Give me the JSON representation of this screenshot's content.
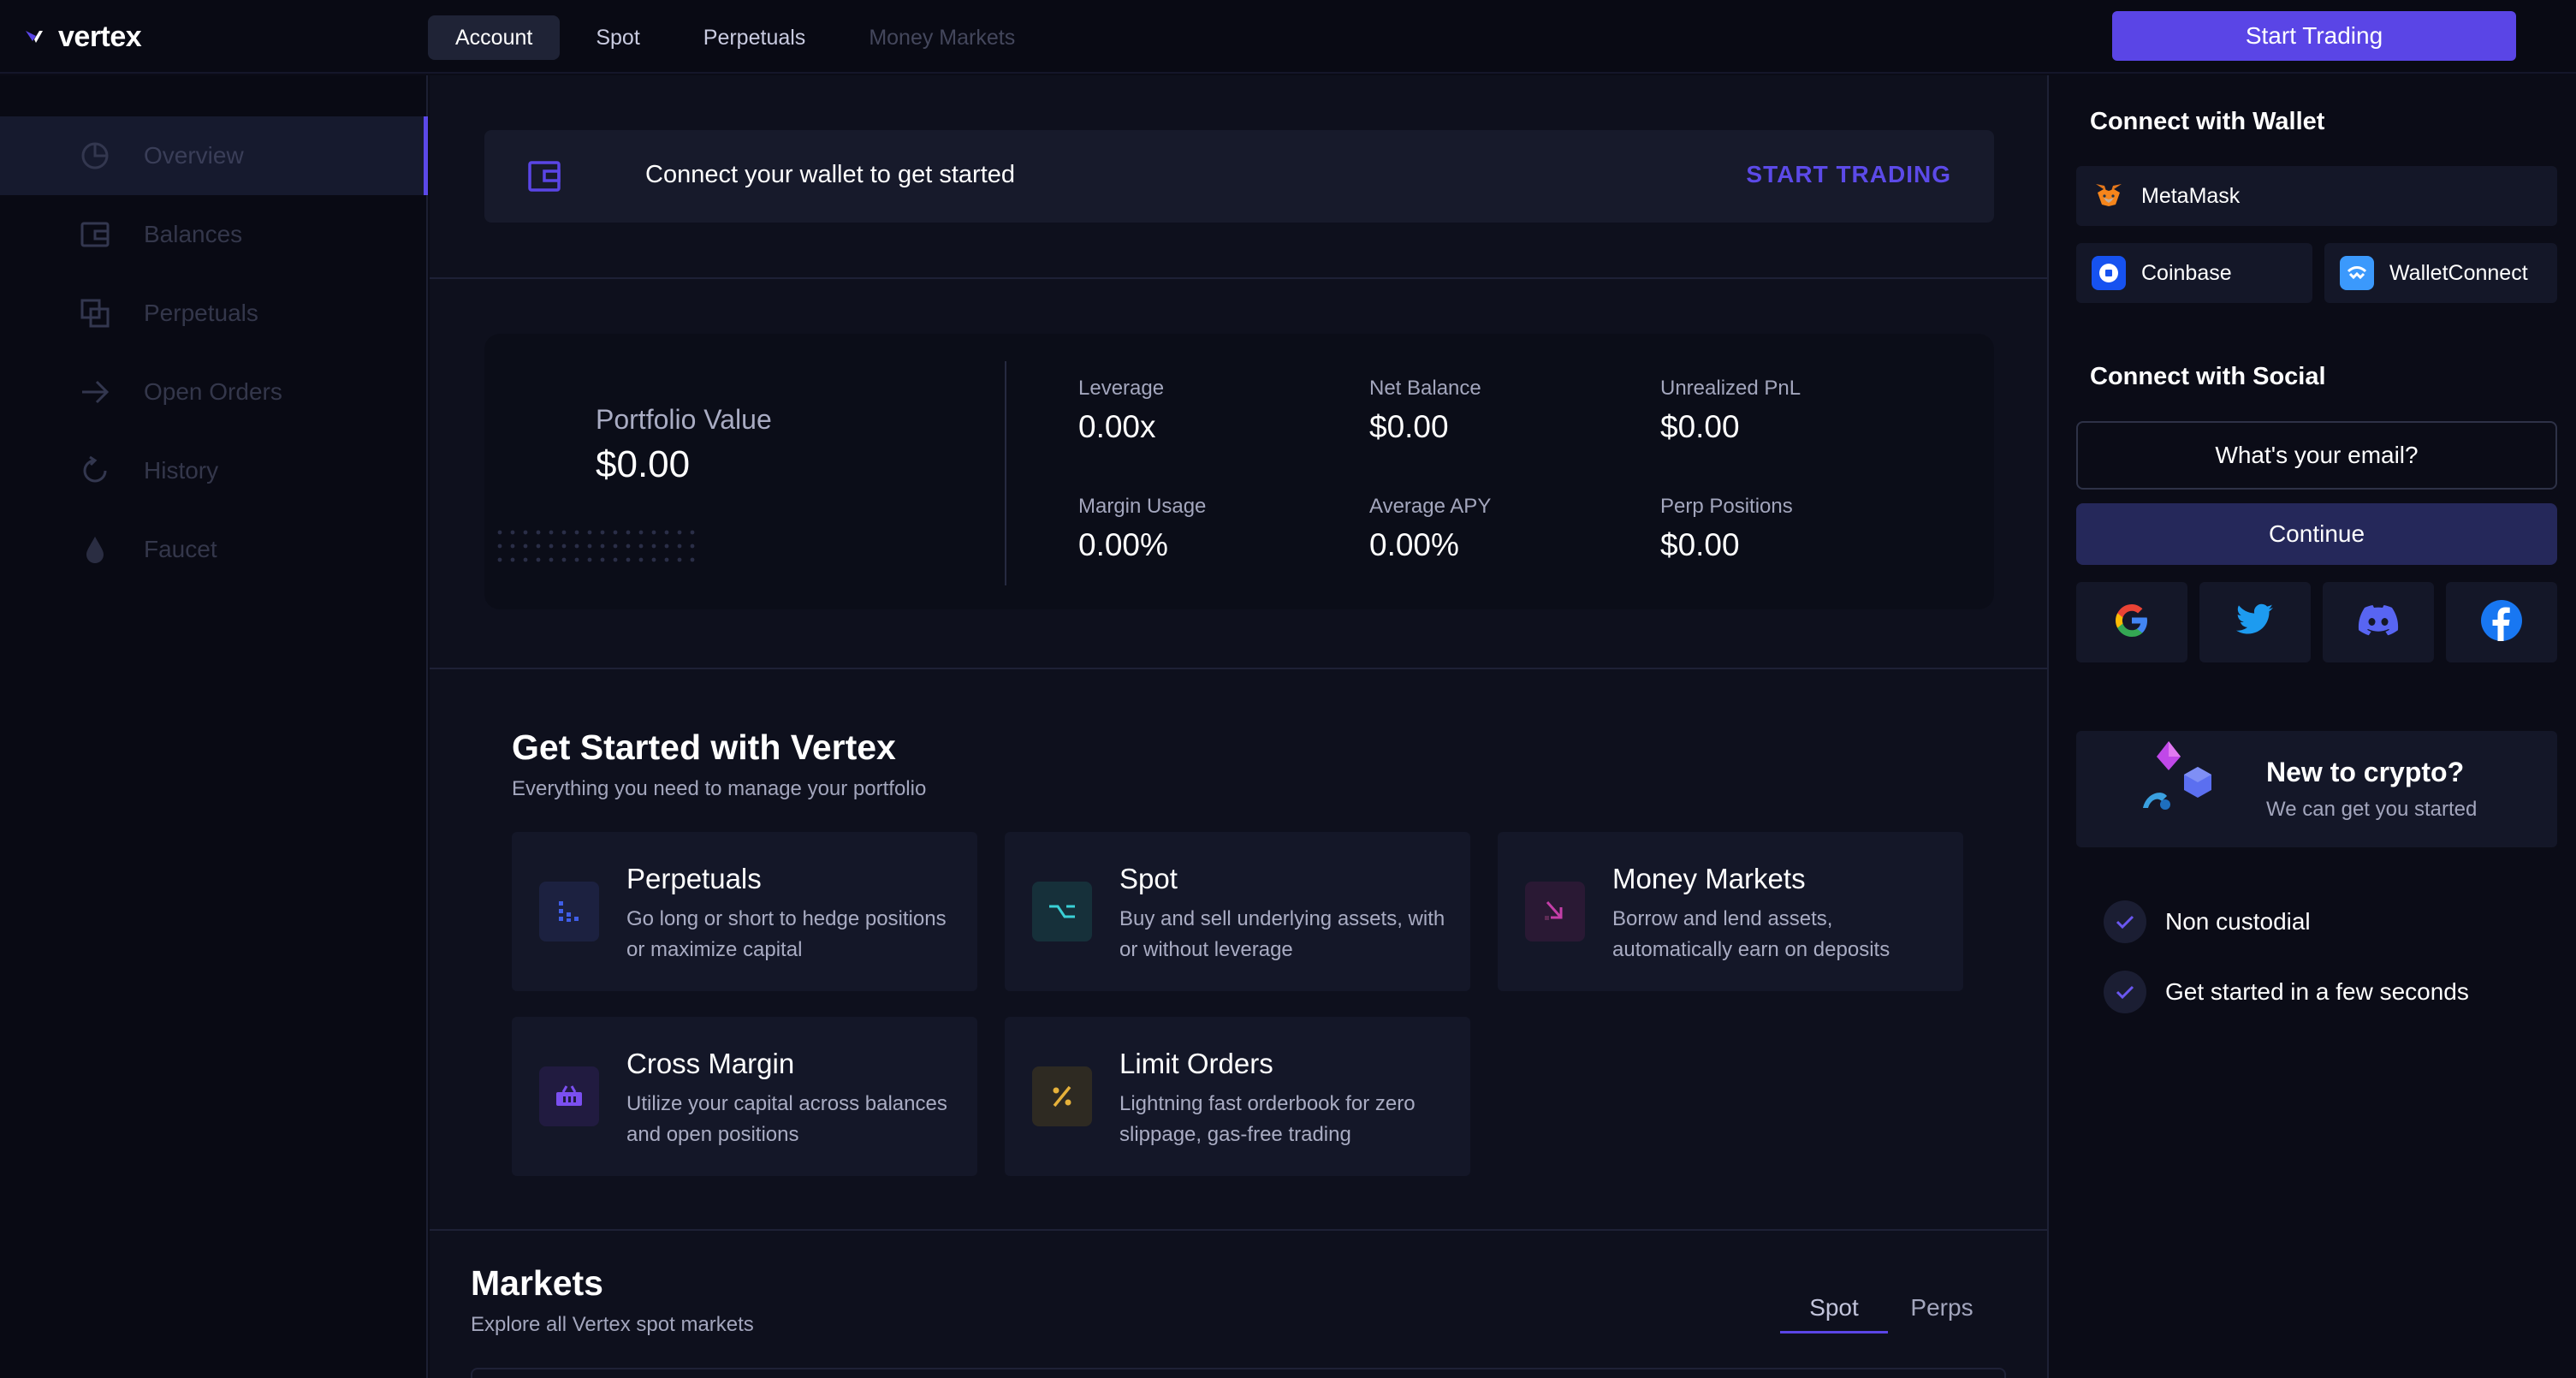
{
  "app": {
    "logo_text": "vertex",
    "accent_color": "#5a45e6"
  },
  "nav": {
    "tabs": [
      {
        "label": "Account",
        "state": "active"
      },
      {
        "label": "Spot",
        "state": "normal"
      },
      {
        "label": "Perpetuals",
        "state": "normal"
      },
      {
        "label": "Money Markets",
        "state": "disabled"
      }
    ],
    "start_trading_label": "Start Trading"
  },
  "sidebar": {
    "items": [
      {
        "label": "Overview",
        "icon": "pie-chart-icon",
        "active": true
      },
      {
        "label": "Balances",
        "icon": "wallet-icon",
        "active": false
      },
      {
        "label": "Perpetuals",
        "icon": "overlap-squares-icon",
        "active": false
      },
      {
        "label": "Open Orders",
        "icon": "arrow-right-icon",
        "active": false
      },
      {
        "label": "History",
        "icon": "history-icon",
        "active": false
      },
      {
        "label": "Faucet",
        "icon": "droplet-icon",
        "active": false
      }
    ]
  },
  "banner": {
    "text": "Connect your wallet to get started",
    "cta": "START TRADING",
    "icon": "wallet-icon"
  },
  "portfolio": {
    "label": "Portfolio Value",
    "value": "$0.00",
    "stats": [
      {
        "label": "Leverage",
        "value": "0.00x"
      },
      {
        "label": "Net Balance",
        "value": "$0.00"
      },
      {
        "label": "Unrealized PnL",
        "value": "$0.00"
      },
      {
        "label": "Margin Usage",
        "value": "0.00%"
      },
      {
        "label": "Average APY",
        "value": "0.00%"
      },
      {
        "label": "Perp Positions",
        "value": "$0.00"
      }
    ]
  },
  "get_started": {
    "title": "Get Started with Vertex",
    "subtitle": "Everything you need to manage your portfolio",
    "cards": [
      {
        "title": "Perpetuals",
        "desc": "Go long or short to hedge positions or maximize capital",
        "icon": "perpetuals-icon",
        "color": "#3f5ee8"
      },
      {
        "title": "Spot",
        "desc": "Buy and sell underlying assets, with or without leverage",
        "icon": "spot-icon",
        "color": "#3ad0d6"
      },
      {
        "title": "Money Markets",
        "desc": "Borrow and lend assets, automatically earn on deposits",
        "icon": "money-markets-icon",
        "color": "#c43ea8"
      },
      {
        "title": "Cross Margin",
        "desc": "Utilize your capital across balances and open positions",
        "icon": "basket-icon",
        "color": "#7b4ff0"
      },
      {
        "title": "Limit Orders",
        "desc": "Lightning fast orderbook for zero slippage, gas-free trading",
        "icon": "percent-icon",
        "color": "#e6b13a"
      }
    ]
  },
  "markets": {
    "title": "Markets",
    "subtitle": "Explore all Vertex spot markets",
    "tabs": [
      {
        "label": "Spot",
        "active": true
      },
      {
        "label": "Perps",
        "active": false
      }
    ]
  },
  "right_panel": {
    "wallet_heading": "Connect with Wallet",
    "wallets": [
      {
        "label": "MetaMask",
        "icon": "metamask-fox-icon"
      },
      {
        "label": "Coinbase",
        "icon": "coinbase-icon"
      },
      {
        "label": "WalletConnect",
        "icon": "walletconnect-icon"
      }
    ],
    "social_heading": "Connect with Social",
    "email_placeholder": "What's your email?",
    "continue_label": "Continue",
    "socials": [
      "google-icon",
      "twitter-icon",
      "discord-icon",
      "facebook-icon"
    ],
    "promo": {
      "title": "New to crypto?",
      "subtitle": "We can get you started"
    },
    "checks": [
      "Non custodial",
      "Get started in a few seconds"
    ]
  }
}
